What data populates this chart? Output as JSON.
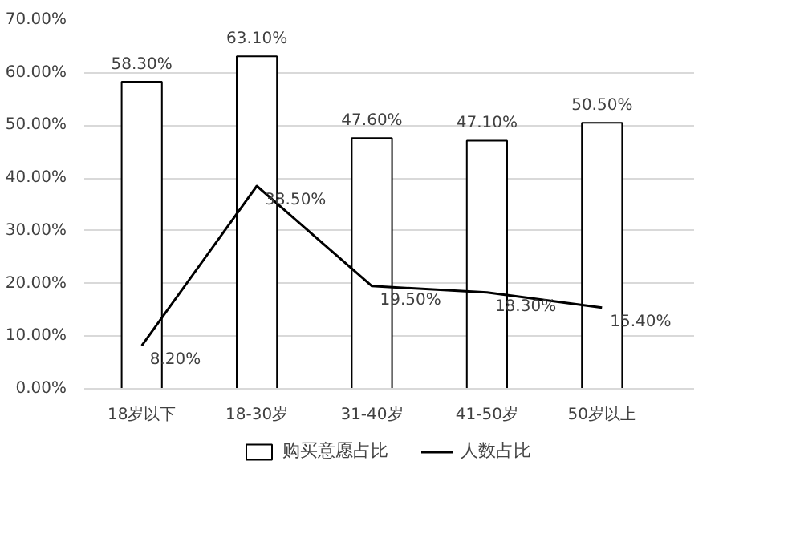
{
  "chart_data": {
    "type": "bar",
    "categories": [
      "18岁以下",
      "18-30岁",
      "31-40岁",
      "41-50岁",
      "50岁以上"
    ],
    "series": [
      {
        "name": "购买意愿占比",
        "color": "#ffffff",
        "values": [
          58.3,
          63.1,
          47.6,
          47.1,
          50.5
        ],
        "value_labels": [
          "58.30%",
          "63.10%",
          "47.60%",
          "47.10%",
          "50.50%"
        ]
      },
      {
        "name": "人数占比",
        "type": "line",
        "color": "#000000",
        "values": [
          8.2,
          38.5,
          19.5,
          18.3,
          15.4
        ],
        "value_labels": [
          "8.20%",
          "38.50%",
          "19.50%",
          "18.30%",
          "15.40%"
        ]
      }
    ],
    "ylim": [
      0,
      70
    ],
    "yticks": [
      {
        "value": 0,
        "label": "0.00%"
      },
      {
        "value": 10,
        "label": "10.00%"
      },
      {
        "value": 20,
        "label": "20.00%"
      },
      {
        "value": 30,
        "label": "30.00%"
      },
      {
        "value": 40,
        "label": "40.00%"
      },
      {
        "value": 50,
        "label": "50.00%"
      },
      {
        "value": 60,
        "label": "60.00%"
      },
      {
        "value": 70,
        "label": "70.00%"
      }
    ],
    "grid": "y",
    "legend": "bottom",
    "marker": "none",
    "line_style": "solid"
  }
}
